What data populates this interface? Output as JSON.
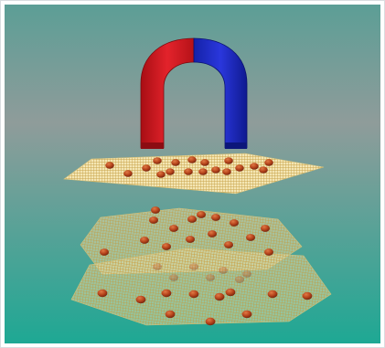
{
  "scene": {
    "subject": "horseshoe-magnet",
    "magnet": {
      "left_arm_color": "#d4141c",
      "right_arm_color": "#1a26c8"
    },
    "layers": [
      "upper-sheet",
      "lower-sheet-front",
      "lower-sheet-back"
    ],
    "sheet_grid_color": "#c8a24a",
    "sheet_fill_color": "#f4e6b4",
    "bead_color": "#b6441c",
    "bead_count_upper": 26,
    "bead_count_lower": 52
  },
  "background": {
    "top_color": "#5c9e96",
    "middle_color": "#8f9c9a",
    "bottom_color": "#1ea894"
  }
}
